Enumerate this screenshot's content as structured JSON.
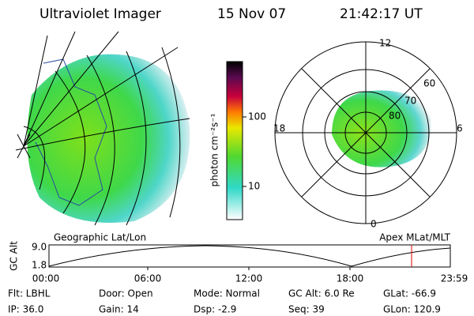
{
  "header": {
    "title": "Ultraviolet Imager",
    "date": "15 Nov 07",
    "time": "21:42:17 UT"
  },
  "geo_map": {
    "label": "Geographic Lat/Lon"
  },
  "polar_map": {
    "label": "Apex MLat/MLT",
    "mlt_labels": [
      "12",
      "18",
      "6",
      "0"
    ],
    "lat_labels": [
      "60",
      "70",
      "80"
    ]
  },
  "colorbar": {
    "axis_label": "photon cm⁻²s⁻¹",
    "ticks": [
      "100",
      "10"
    ]
  },
  "alt_plot": {
    "y_label": "GC Alt",
    "y_ticks": [
      "9.0",
      "1.8"
    ],
    "x_ticks": [
      "00:00",
      "06:00",
      "12:00",
      "18:00",
      "23:59"
    ]
  },
  "status": [
    [
      "Flt: LBHL",
      "Door: Open",
      "Mode: Normal",
      "GC Alt: 6.0 Re",
      "GLat: -66.9"
    ],
    [
      "IP: 36.0",
      "Gain: 14",
      "Dsp: -2.9",
      "Seq: 39",
      "GLon: 120.9"
    ]
  ]
}
